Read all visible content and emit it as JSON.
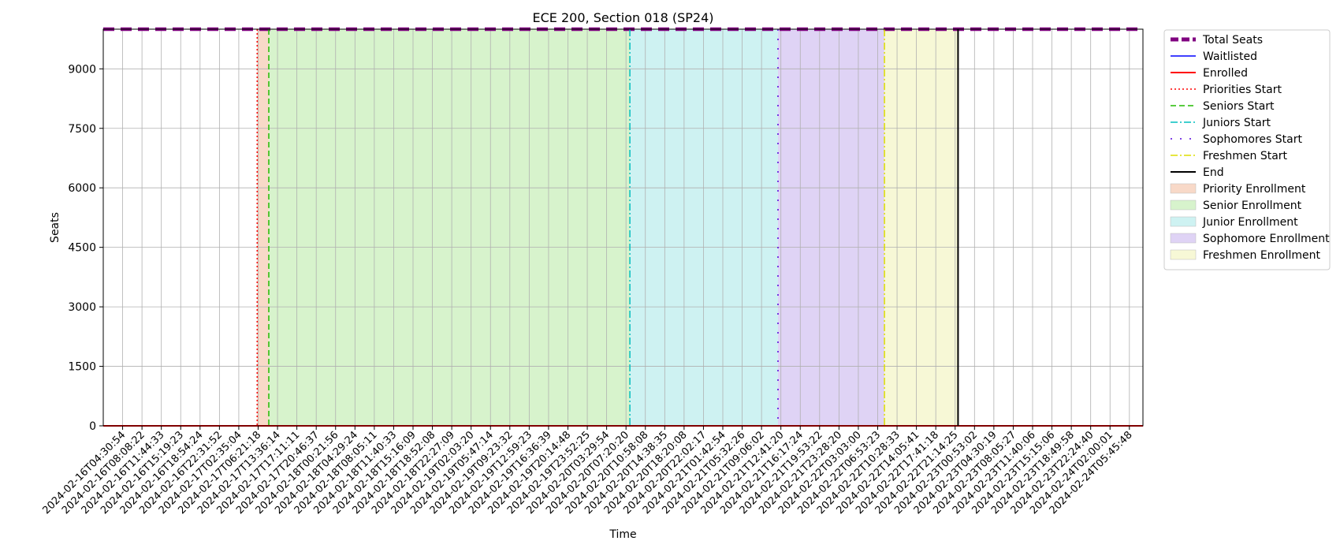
{
  "chart_data": {
    "type": "line",
    "title": "ECE 200, Section 018 (SP24)",
    "xlabel": "Time",
    "ylabel": "Seats",
    "ylim": [
      0,
      10000
    ],
    "yticks": [
      0,
      1500,
      3000,
      4500,
      6000,
      7500,
      9000
    ],
    "grid": true,
    "legend_placement": "outside-right",
    "x_ticks": [
      "2024-02-16T04:30:54",
      "2024-02-16T08:08:22",
      "2024-02-16T11:44:33",
      "2024-02-16T15:19:23",
      "2024-02-16T18:54:24",
      "2024-02-16T22:31:52",
      "2024-02-17T02:35:04",
      "2024-02-17T06:21:18",
      "2024-02-17T13:36:14",
      "2024-02-17T17:11:11",
      "2024-02-17T20:46:37",
      "2024-02-18T00:21:56",
      "2024-02-18T04:29:24",
      "2024-02-18T08:05:11",
      "2024-02-18T11:40:33",
      "2024-02-18T15:16:09",
      "2024-02-18T18:52:08",
      "2024-02-18T22:27:09",
      "2024-02-19T02:03:20",
      "2024-02-19T05:47:14",
      "2024-02-19T09:23:32",
      "2024-02-19T12:59:23",
      "2024-02-19T16:36:39",
      "2024-02-19T20:14:48",
      "2024-02-19T23:52:25",
      "2024-02-20T03:29:54",
      "2024-02-20T07:20:20",
      "2024-02-20T10:58:08",
      "2024-02-20T14:38:35",
      "2024-02-20T18:20:08",
      "2024-02-20T22:02:17",
      "2024-02-21T01:42:54",
      "2024-02-21T05:32:26",
      "2024-02-21T09:06:02",
      "2024-02-21T12:41:20",
      "2024-02-21T16:17:24",
      "2024-02-21T19:53:22",
      "2024-02-21T23:28:20",
      "2024-02-22T03:03:00",
      "2024-02-22T06:53:23",
      "2024-02-22T10:28:33",
      "2024-02-22T14:05:41",
      "2024-02-22T17:41:18",
      "2024-02-22T21:14:25",
      "2024-02-23T00:53:02",
      "2024-02-23T04:30:19",
      "2024-02-23T08:05:27",
      "2024-02-23T11:40:06",
      "2024-02-23T15:15:06",
      "2024-02-23T18:49:58",
      "2024-02-23T22:24:40",
      "2024-02-24T02:00:01",
      "2024-02-24T05:45:48"
    ],
    "x_range_index": [
      -1,
      52.7
    ],
    "series": [
      {
        "name": "Total Seats",
        "color": "#800080",
        "style": "dashed-thick",
        "values_constant": 9999
      },
      {
        "name": "Waitlisted",
        "color": "#0000ff",
        "style": "solid",
        "values_constant": 0
      },
      {
        "name": "Enrolled",
        "color": "#ff0000",
        "style": "solid-thick",
        "values_constant": 0
      }
    ],
    "phase_markers": [
      {
        "name": "Priorities Start",
        "index": 6.95,
        "color": "#ff0000",
        "style": "dotted"
      },
      {
        "name": "Seniors Start",
        "index": 7.55,
        "color": "#22bb00",
        "style": "dashed"
      },
      {
        "name": "Juniors Start",
        "index": 26.2,
        "color": "#00bfbf",
        "style": "dashdot"
      },
      {
        "name": "Sophomores Start",
        "index": 33.85,
        "color": "#5500dd",
        "style": "loosely-dashdot"
      },
      {
        "name": "Freshmen Start",
        "index": 39.35,
        "color": "#dddd00",
        "style": "dashdot"
      },
      {
        "name": "End",
        "index": 43.15,
        "color": "#000000",
        "style": "solid"
      }
    ],
    "phase_regions": [
      {
        "name": "Priority Enrollment",
        "from": 6.95,
        "to": 7.55,
        "color": "#f8d9c8"
      },
      {
        "name": "Senior Enrollment",
        "from": 7.55,
        "to": 26.2,
        "color": "#d7f3cc"
      },
      {
        "name": "Junior Enrollment",
        "from": 26.2,
        "to": 33.85,
        "color": "#cef2f2"
      },
      {
        "name": "Sophomore Enrollment",
        "from": 33.85,
        "to": 39.35,
        "color": "#dfd3f5"
      },
      {
        "name": "Freshmen Enrollment",
        "from": 39.35,
        "to": 43.15,
        "color": "#f7f8d6"
      }
    ]
  }
}
